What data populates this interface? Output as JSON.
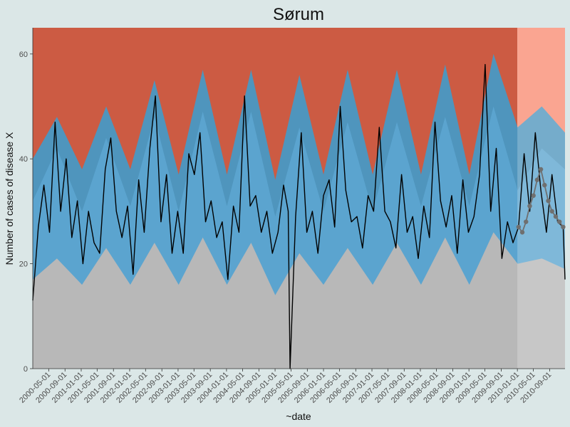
{
  "colors": {
    "background": "#dbe7e7",
    "alarm_fill": "#cc5b43",
    "alarm_fill_forecast": "#f98c73",
    "upper_band": "#4f95bd",
    "upper_band_forecast": "#87c8e6",
    "lower_band": "#5ba4cf",
    "lower_band_forecast": "#8fd1ee",
    "baseline_fill": "#b8b8b8",
    "observed_line": "#000000",
    "forecast_points": "#6f6f6f"
  },
  "chart_data": {
    "type": "area",
    "title": "Sørum",
    "xlabel": "~date",
    "ylabel": "Number of cases of disease X",
    "ylim": [
      0,
      65
    ],
    "y_ticks": [
      0,
      20,
      40,
      60
    ],
    "x_range": [
      "2000-01-02",
      "2010-12-26"
    ],
    "x_tick_labels": [
      "2000-05-01",
      "2000-09-01",
      "2001-01-01",
      "2001-05-01",
      "2001-09-01",
      "2002-01-01",
      "2002-05-01",
      "2002-09-01",
      "2003-01-01",
      "2003-05-01",
      "2003-09-01",
      "2004-01-01",
      "2004-05-01",
      "2004-09-01",
      "2005-01-01",
      "2005-05-01",
      "2005-09-01",
      "2006-01-01",
      "2006-05-01",
      "2006-09-01",
      "2007-01-01",
      "2007-05-01",
      "2007-09-01",
      "2008-01-01",
      "2008-05-01",
      "2008-09-01",
      "2009-01-01",
      "2009-05-01",
      "2009-09-01",
      "2010-01-01",
      "2010-05-01",
      "2010-09-01"
    ],
    "forecast_start": "2010-01-01",
    "grid": false,
    "legend": "none",
    "series": [
      {
        "role": "observed",
        "x": [
          "2000-01-02",
          "2000-02-13",
          "2000-03-26",
          "2000-05-07",
          "2000-06-18",
          "2000-07-30",
          "2000-09-10",
          "2000-10-22",
          "2000-12-03",
          "2001-01-14",
          "2001-02-25",
          "2001-04-08",
          "2001-05-20",
          "2001-07-01",
          "2001-08-12",
          "2001-09-23",
          "2001-11-04",
          "2001-12-16",
          "2002-01-27",
          "2002-03-10",
          "2002-04-21",
          "2002-06-02",
          "2002-07-14",
          "2002-08-25",
          "2002-10-06",
          "2002-11-17",
          "2002-12-29",
          "2003-02-09",
          "2003-03-23",
          "2003-05-04",
          "2003-06-15",
          "2003-07-27",
          "2003-09-07",
          "2003-10-19",
          "2003-11-30",
          "2004-01-11",
          "2004-02-22",
          "2004-04-04",
          "2004-05-16",
          "2004-06-27",
          "2004-08-08",
          "2004-09-19",
          "2004-10-31",
          "2004-12-12",
          "2005-01-23",
          "2005-03-06",
          "2005-04-10",
          "2005-04-24",
          "2005-06-05",
          "2005-07-17",
          "2005-08-28",
          "2005-10-09",
          "2005-11-20",
          "2006-01-01",
          "2006-02-12",
          "2006-03-26",
          "2006-05-07",
          "2006-06-18",
          "2006-07-30",
          "2006-09-10",
          "2006-10-22",
          "2006-12-03",
          "2007-01-14",
          "2007-02-25",
          "2007-04-08",
          "2007-05-20",
          "2007-07-01",
          "2007-08-12",
          "2007-09-23",
          "2007-11-04",
          "2007-12-16",
          "2008-01-27",
          "2008-03-09",
          "2008-04-20",
          "2008-06-01",
          "2008-07-13",
          "2008-08-24",
          "2008-10-05",
          "2008-11-16",
          "2008-12-28",
          "2009-02-08",
          "2009-03-22",
          "2009-05-03",
          "2009-06-14",
          "2009-07-26",
          "2009-09-06",
          "2009-10-18",
          "2009-11-29",
          "2010-01-10",
          "2010-02-21",
          "2010-04-04",
          "2010-05-16",
          "2010-06-27",
          "2010-08-08",
          "2010-09-19",
          "2010-10-31",
          "2010-12-12",
          "2010-12-26"
        ],
        "values": [
          13,
          27,
          35,
          26,
          47,
          30,
          40,
          25,
          32,
          20,
          30,
          24,
          22,
          38,
          44,
          30,
          25,
          31,
          18,
          36,
          26,
          42,
          52,
          28,
          37,
          22,
          30,
          22,
          41,
          37,
          45,
          28,
          32,
          25,
          28,
          17,
          31,
          26,
          52,
          31,
          33,
          26,
          30,
          22,
          26,
          35,
          30,
          0,
          29,
          45,
          26,
          30,
          22,
          33,
          36,
          27,
          50,
          34,
          28,
          29,
          23,
          33,
          30,
          46,
          30,
          28,
          23,
          37,
          26,
          29,
          21,
          31,
          25,
          47,
          32,
          27,
          33,
          22,
          36,
          26,
          29,
          37,
          58,
          30,
          42,
          21,
          28,
          24,
          27,
          41,
          30,
          45,
          34,
          26,
          37,
          28,
          27,
          17
        ]
      },
      {
        "role": "forecast_mean",
        "x": [
          "2010-01-10",
          "2010-02-07",
          "2010-03-07",
          "2010-04-04",
          "2010-05-02",
          "2010-05-30",
          "2010-06-27",
          "2010-07-25",
          "2010-08-22",
          "2010-09-19",
          "2010-10-17",
          "2010-11-14",
          "2010-12-12"
        ],
        "values": [
          27,
          26,
          28,
          31,
          33,
          36,
          38,
          35,
          32,
          30,
          29,
          28,
          27
        ]
      },
      {
        "role": "baseline_lower",
        "x": [
          "2000-01-02",
          "2000-07-02",
          "2001-01-07",
          "2001-07-08",
          "2002-01-06",
          "2002-07-07",
          "2003-01-05",
          "2003-07-06",
          "2004-01-04",
          "2004-07-04",
          "2005-01-02",
          "2005-07-03",
          "2006-01-01",
          "2006-07-02",
          "2007-01-07",
          "2007-07-08",
          "2008-01-06",
          "2008-07-06",
          "2009-01-04",
          "2009-07-05",
          "2010-01-03",
          "2010-07-04",
          "2010-12-26"
        ],
        "values": [
          17,
          21,
          16,
          23,
          16,
          24,
          16,
          25,
          16,
          24,
          14,
          22,
          16,
          23,
          16,
          24,
          16,
          25,
          16,
          26,
          20,
          21,
          19
        ]
      },
      {
        "role": "band_mid",
        "x": [
          "2000-01-02",
          "2000-07-02",
          "2001-01-07",
          "2001-07-08",
          "2002-01-06",
          "2002-07-07",
          "2003-01-05",
          "2003-07-06",
          "2004-01-04",
          "2004-07-04",
          "2005-01-02",
          "2005-07-03",
          "2006-01-01",
          "2006-07-02",
          "2007-01-07",
          "2007-07-08",
          "2008-01-06",
          "2008-07-06",
          "2009-01-04",
          "2009-07-05",
          "2010-01-03",
          "2010-07-04",
          "2010-12-26"
        ],
        "values": [
          32,
          42,
          30,
          44,
          31,
          48,
          30,
          49,
          31,
          49,
          29,
          46,
          30,
          47,
          30,
          47,
          31,
          48,
          31,
          50,
          34,
          42,
          38
        ]
      },
      {
        "role": "alarm_threshold",
        "x": [
          "2000-01-02",
          "2000-07-02",
          "2001-01-07",
          "2001-07-08",
          "2002-01-06",
          "2002-07-07",
          "2003-01-05",
          "2003-07-06",
          "2004-01-04",
          "2004-07-04",
          "2005-01-02",
          "2005-07-03",
          "2006-01-01",
          "2006-07-02",
          "2007-01-07",
          "2007-07-08",
          "2008-01-06",
          "2008-07-06",
          "2009-01-04",
          "2009-07-05",
          "2010-01-03",
          "2010-07-04",
          "2010-12-26"
        ],
        "values": [
          40,
          48,
          38,
          50,
          38,
          55,
          37,
          57,
          37,
          57,
          36,
          56,
          37,
          57,
          37,
          57,
          37,
          58,
          37,
          60,
          46,
          50,
          45
        ]
      }
    ]
  }
}
